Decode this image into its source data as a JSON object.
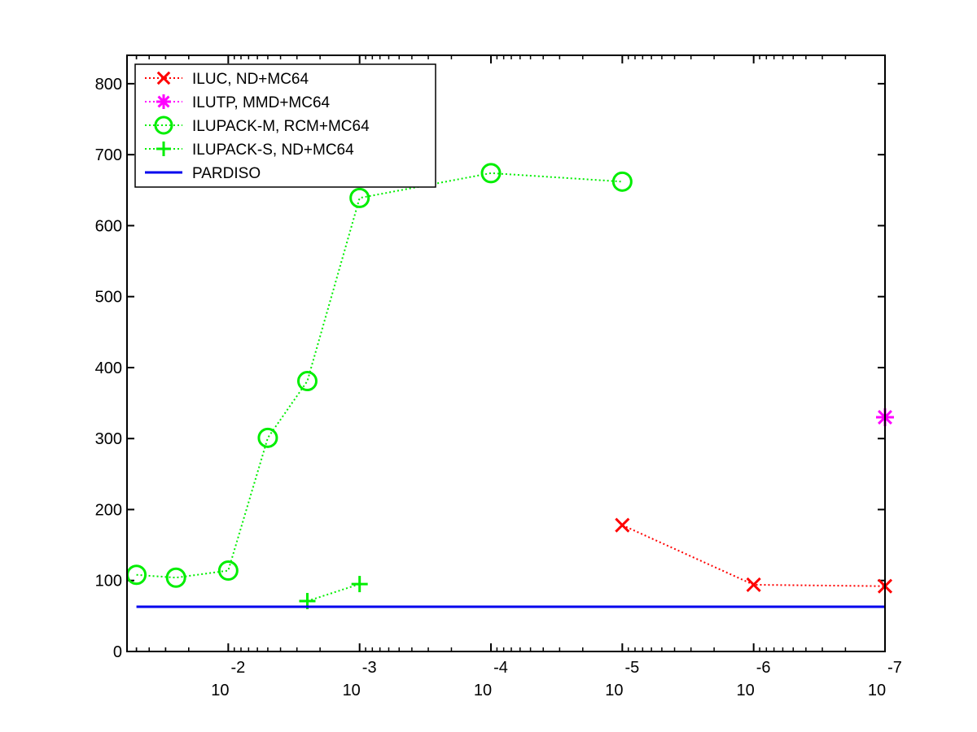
{
  "chart_data": {
    "type": "line",
    "title": "",
    "xlabel": "",
    "ylabel": "",
    "x_scale": "log-reversed",
    "xlim": [
      0.059,
      1e-07
    ],
    "ylim": [
      0,
      840
    ],
    "x_ticks": [
      {
        "base": "10",
        "exp": "-2",
        "value": 0.01
      },
      {
        "base": "10",
        "exp": "-3",
        "value": 0.001
      },
      {
        "base": "10",
        "exp": "-4",
        "value": 0.0001
      },
      {
        "base": "10",
        "exp": "-5",
        "value": 1e-05
      },
      {
        "base": "10",
        "exp": "-6",
        "value": 1e-06
      },
      {
        "base": "10",
        "exp": "-7",
        "value": 1e-07
      }
    ],
    "y_ticks": [
      "0",
      "100",
      "200",
      "300",
      "400",
      "500",
      "600",
      "700",
      "800"
    ],
    "y_tick_values": [
      0,
      100,
      200,
      300,
      400,
      500,
      600,
      700,
      800
    ],
    "grid": false,
    "legend_position": "top-left",
    "series": [
      {
        "name": "ILUC,  ND+MC64",
        "color": "#ff0000",
        "marker": "x",
        "line": "dotted",
        "points": [
          [
            1e-05,
            178
          ],
          [
            1e-06,
            94
          ],
          [
            1e-07,
            92
          ]
        ]
      },
      {
        "name": "ILUTP, MMD+MC64",
        "color": "#ff00ff",
        "marker": "star",
        "line": "dotted",
        "points": [
          [
            1e-07,
            330
          ]
        ]
      },
      {
        "name": "ILUPACK-M, RCM+MC64",
        "color": "#00ee00",
        "marker": "circle",
        "line": "dotted",
        "points": [
          [
            0.05,
            108
          ],
          [
            0.025,
            104
          ],
          [
            0.01,
            114
          ],
          [
            0.005,
            301
          ],
          [
            0.0025,
            381
          ],
          [
            0.001,
            639
          ],
          [
            0.0001,
            674
          ],
          [
            1e-05,
            662
          ]
        ]
      },
      {
        "name": "ILUPACK-S, ND+MC64",
        "color": "#00ee00",
        "marker": "plus",
        "line": "dotted",
        "points": [
          [
            0.0025,
            71
          ],
          [
            0.001,
            95
          ]
        ]
      },
      {
        "name": "PARDISO",
        "color": "#0000ee",
        "marker": "none",
        "line": "solid",
        "points": [
          [
            0.05,
            63
          ],
          [
            1e-07,
            63
          ]
        ]
      }
    ]
  }
}
